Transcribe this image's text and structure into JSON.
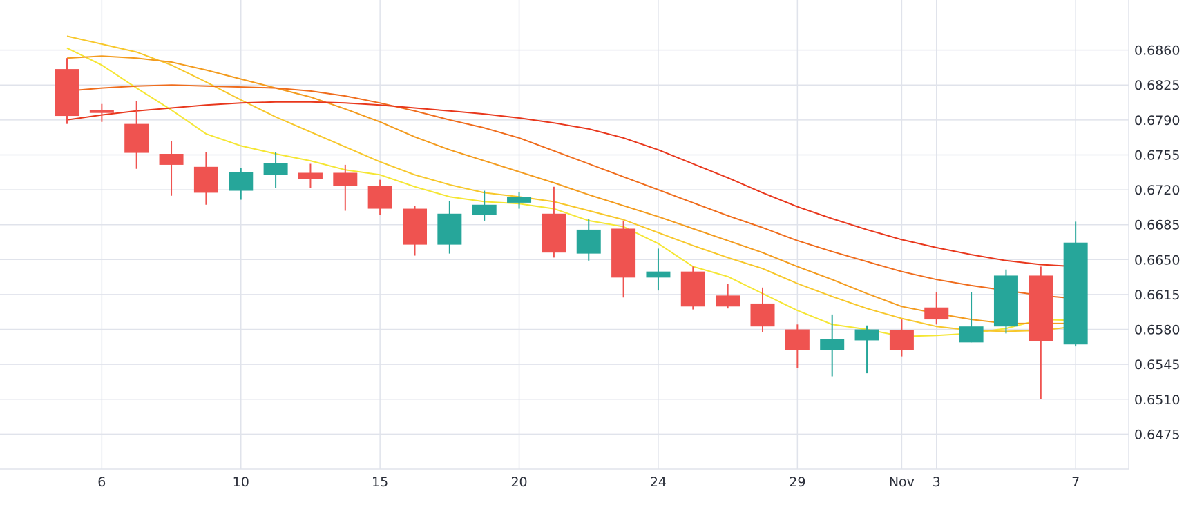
{
  "chart_data": {
    "type": "candlestick",
    "title": "",
    "xlabel": "",
    "ylabel": "",
    "ylim": [
      0.644,
      0.6895
    ],
    "x_ticks": [
      {
        "i": 1,
        "label": "6"
      },
      {
        "i": 5,
        "label": "10"
      },
      {
        "i": 9,
        "label": "15"
      },
      {
        "i": 13,
        "label": "20"
      },
      {
        "i": 17,
        "label": "24"
      },
      {
        "i": 21,
        "label": "29"
      },
      {
        "i": 24,
        "label": "Nov"
      },
      {
        "i": 25,
        "label": "3"
      },
      {
        "i": 29,
        "label": "7"
      }
    ],
    "y_ticks": [
      "0.6860",
      "0.6825",
      "0.6790",
      "0.6755",
      "0.6720",
      "0.6685",
      "0.6650",
      "0.6615",
      "0.6580",
      "0.6545",
      "0.6510",
      "0.6475"
    ],
    "candles": [
      {
        "o": 0.6841,
        "h": 0.6852,
        "l": 0.6786,
        "c": 0.6794
      },
      {
        "o": 0.68,
        "h": 0.6806,
        "l": 0.6788,
        "c": 0.6797
      },
      {
        "o": 0.6786,
        "h": 0.6809,
        "l": 0.6741,
        "c": 0.6757
      },
      {
        "o": 0.6756,
        "h": 0.6769,
        "l": 0.6714,
        "c": 0.6745
      },
      {
        "o": 0.6743,
        "h": 0.6758,
        "l": 0.6705,
        "c": 0.6717
      },
      {
        "o": 0.6719,
        "h": 0.6742,
        "l": 0.671,
        "c": 0.6738
      },
      {
        "o": 0.6735,
        "h": 0.6758,
        "l": 0.6722,
        "c": 0.6747
      },
      {
        "o": 0.6737,
        "h": 0.6746,
        "l": 0.6722,
        "c": 0.6731
      },
      {
        "o": 0.6737,
        "h": 0.6745,
        "l": 0.6699,
        "c": 0.6724
      },
      {
        "o": 0.6724,
        "h": 0.673,
        "l": 0.6695,
        "c": 0.6701
      },
      {
        "o": 0.6701,
        "h": 0.6704,
        "l": 0.6654,
        "c": 0.6665
      },
      {
        "o": 0.6665,
        "h": 0.6709,
        "l": 0.6656,
        "c": 0.6696
      },
      {
        "o": 0.6695,
        "h": 0.6719,
        "l": 0.6689,
        "c": 0.6705
      },
      {
        "o": 0.6707,
        "h": 0.6718,
        "l": 0.6701,
        "c": 0.6713
      },
      {
        "o": 0.6696,
        "h": 0.6723,
        "l": 0.6652,
        "c": 0.6657
      },
      {
        "o": 0.6656,
        "h": 0.6691,
        "l": 0.6649,
        "c": 0.668
      },
      {
        "o": 0.6681,
        "h": 0.6689,
        "l": 0.6612,
        "c": 0.6632
      },
      {
        "o": 0.6632,
        "h": 0.6661,
        "l": 0.6619,
        "c": 0.6638
      },
      {
        "o": 0.6638,
        "h": 0.6643,
        "l": 0.66,
        "c": 0.6603
      },
      {
        "o": 0.6614,
        "h": 0.6626,
        "l": 0.6601,
        "c": 0.6603
      },
      {
        "o": 0.6606,
        "h": 0.6622,
        "l": 0.6577,
        "c": 0.6583
      },
      {
        "o": 0.658,
        "h": 0.6585,
        "l": 0.6541,
        "c": 0.6559
      },
      {
        "o": 0.6559,
        "h": 0.6595,
        "l": 0.6533,
        "c": 0.657
      },
      {
        "o": 0.6569,
        "h": 0.6584,
        "l": 0.6536,
        "c": 0.658
      },
      {
        "o": 0.6579,
        "h": 0.659,
        "l": 0.6553,
        "c": 0.6559
      },
      {
        "o": 0.6602,
        "h": 0.6617,
        "l": 0.6585,
        "c": 0.659
      },
      {
        "o": 0.6567,
        "h": 0.6617,
        "l": 0.6567,
        "c": 0.6583
      },
      {
        "o": 0.6583,
        "h": 0.664,
        "l": 0.6576,
        "c": 0.6634
      },
      {
        "o": 0.6634,
        "h": 0.6643,
        "l": 0.651,
        "c": 0.6568
      },
      {
        "o": 0.6565,
        "h": 0.6688,
        "l": 0.6563,
        "c": 0.6667
      }
    ],
    "series": [
      {
        "color": "#f5e633",
        "values": [
          0.6862,
          0.6845,
          0.6822,
          0.68,
          0.6776,
          0.6764,
          0.6756,
          0.6749,
          0.674,
          0.6735,
          0.6723,
          0.6713,
          0.6708,
          0.6706,
          0.6701,
          0.6689,
          0.6683,
          0.6666,
          0.6643,
          0.6633,
          0.6616,
          0.6599,
          0.6585,
          0.658,
          0.6573,
          0.6574,
          0.6576,
          0.6581,
          0.659,
          0.6589
        ]
      },
      {
        "color": "#f7c72a",
        "values": [
          0.6874,
          0.6866,
          0.6858,
          0.6845,
          0.6828,
          0.681,
          0.6793,
          0.6778,
          0.6763,
          0.6748,
          0.6735,
          0.6725,
          0.6717,
          0.6713,
          0.6708,
          0.6699,
          0.669,
          0.6677,
          0.6664,
          0.6652,
          0.6641,
          0.6626,
          0.6613,
          0.6601,
          0.6591,
          0.6583,
          0.6579,
          0.6578,
          0.6579,
          0.6583
        ]
      },
      {
        "color": "#f39b1e",
        "values": [
          0.6852,
          0.6854,
          0.6852,
          0.6848,
          0.684,
          0.6831,
          0.6822,
          0.6813,
          0.6801,
          0.6788,
          0.6773,
          0.676,
          0.6749,
          0.6738,
          0.6727,
          0.6715,
          0.6704,
          0.6693,
          0.6681,
          0.6669,
          0.6657,
          0.6643,
          0.663,
          0.6616,
          0.6603,
          0.6596,
          0.659,
          0.6586,
          0.6586,
          0.6586
        ]
      },
      {
        "color": "#ef6c1c",
        "values": [
          0.6819,
          0.6822,
          0.6824,
          0.6825,
          0.6824,
          0.6823,
          0.6822,
          0.6819,
          0.6814,
          0.6807,
          0.6799,
          0.679,
          0.6782,
          0.6772,
          0.6759,
          0.6746,
          0.6733,
          0.672,
          0.6707,
          0.6694,
          0.6682,
          0.6669,
          0.6658,
          0.6648,
          0.6638,
          0.663,
          0.6624,
          0.6619,
          0.6614,
          0.6611
        ]
      },
      {
        "color": "#e8371c",
        "values": [
          0.679,
          0.6795,
          0.6799,
          0.6802,
          0.6805,
          0.6807,
          0.6808,
          0.6808,
          0.6807,
          0.6805,
          0.6802,
          0.6799,
          0.6796,
          0.6792,
          0.6787,
          0.6781,
          0.6772,
          0.676,
          0.6746,
          0.6732,
          0.6717,
          0.6703,
          0.6691,
          0.668,
          0.667,
          0.6662,
          0.6655,
          0.6649,
          0.6645,
          0.6643
        ]
      }
    ],
    "colors": {
      "up": "#26a69a",
      "down": "#ef5350",
      "grid": "#e0e3eb",
      "text": "#2a2e39"
    },
    "grid": true
  }
}
